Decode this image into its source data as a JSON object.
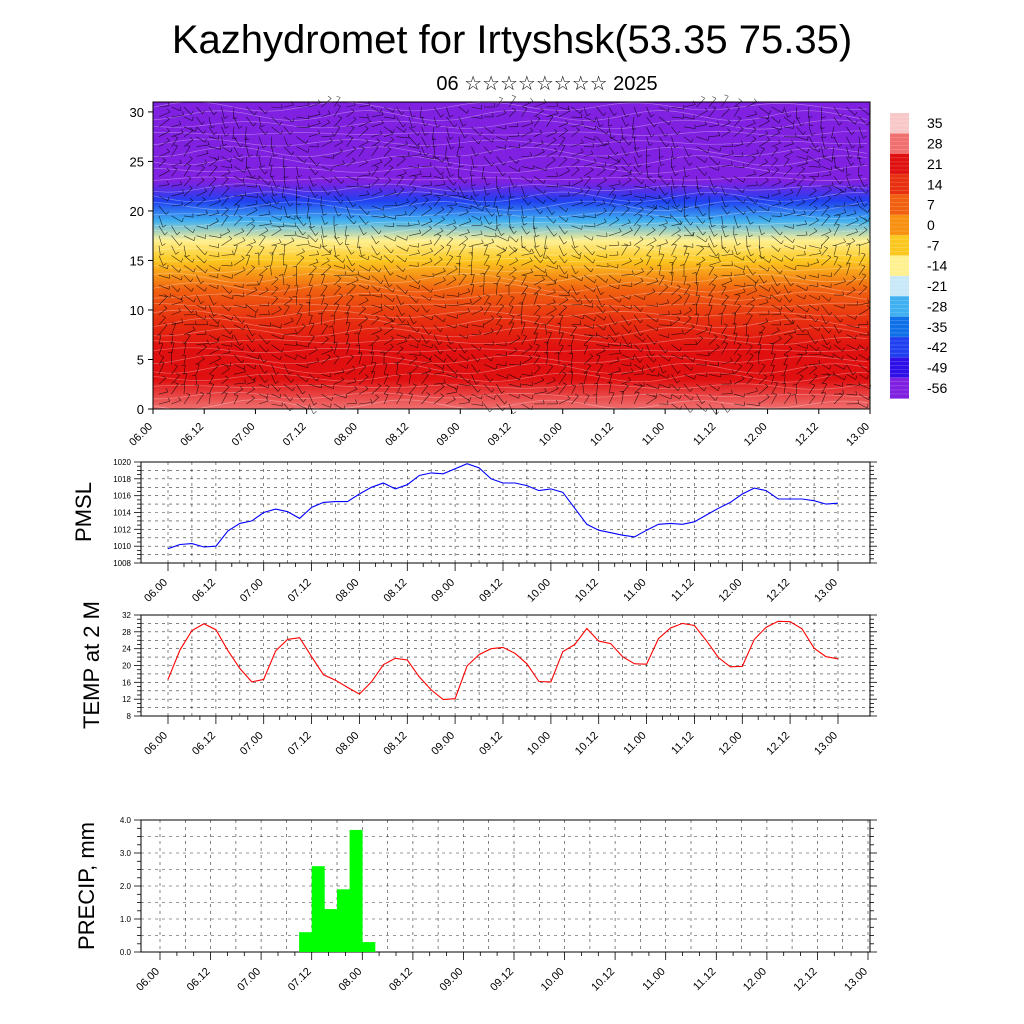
{
  "header": {
    "title": "Kazhydromet for Irtyshsk(53.35 75.35)",
    "subtitle": "06 ☆☆☆☆☆☆☆☆ 2025"
  },
  "time_ticks": [
    "06.00",
    "06.12",
    "07.00",
    "07.12",
    "08.00",
    "08.12",
    "09.00",
    "09.12",
    "10.00",
    "10.12",
    "11.00",
    "11.12",
    "12.00",
    "12.12",
    "13.00"
  ],
  "chart_data": [
    {
      "type": "heatmap",
      "name": "cross-section",
      "x_ticks": [
        "06.00",
        "06.12",
        "07.00",
        "07.12",
        "08.00",
        "08.12",
        "09.00",
        "09.12",
        "10.00",
        "10.12",
        "11.00",
        "11.12",
        "12.00",
        "12.12",
        "13.00"
      ],
      "y_ticks": [
        0,
        5,
        10,
        15,
        20,
        25,
        30
      ],
      "ylim": [
        0,
        31
      ],
      "colorbar": {
        "labels": [
          "35",
          "28",
          "21",
          "14",
          "7",
          "0",
          "-7",
          "-14",
          "-21",
          "-28",
          "-35",
          "-42",
          "-49",
          "-56"
        ],
        "colors": [
          "#f8c8c8",
          "#f07070",
          "#e01010",
          "#e83010",
          "#f06010",
          "#f89010",
          "#fcc820",
          "#fff090",
          "#c8e8f8",
          "#40b0f0",
          "#1070e8",
          "#2040f0",
          "#3010e8",
          "#8020e0"
        ]
      },
      "temperature_profile": [
        [
          0,
          27
        ],
        [
          3,
          24
        ],
        [
          6,
          20
        ],
        [
          9,
          14
        ],
        [
          12,
          6
        ],
        [
          15,
          -4
        ],
        [
          17,
          -13
        ],
        [
          19,
          -30
        ],
        [
          21,
          -45
        ],
        [
          23,
          -55
        ],
        [
          25,
          -58
        ],
        [
          28,
          -56
        ],
        [
          31,
          -55
        ]
      ]
    },
    {
      "type": "line",
      "name": "pmsl",
      "ylabel": "PMSL",
      "ylim": [
        1008,
        1020
      ],
      "y_ticks": [
        1008,
        1010,
        1012,
        1014,
        1016,
        1018,
        1020
      ],
      "color": "#0000ff",
      "step_hours": 3,
      "values": [
        1009.7,
        1010.2,
        1010.3,
        1009.9,
        1010.0,
        1011.8,
        1012.7,
        1013.0,
        1014.0,
        1014.4,
        1014.1,
        1013.3,
        1014.6,
        1015.2,
        1015.3,
        1015.3,
        1016.2,
        1017.0,
        1017.5,
        1016.8,
        1017.3,
        1018.4,
        1018.7,
        1018.6,
        1019.2,
        1019.8,
        1019.3,
        1018.0,
        1017.5,
        1017.5,
        1017.2,
        1016.6,
        1016.8,
        1016.4,
        1014.5,
        1012.6,
        1011.9,
        1011.6,
        1011.3,
        1011.1,
        1011.9,
        1012.6,
        1012.7,
        1012.6,
        1012.9,
        1013.7,
        1014.5,
        1015.2,
        1016.2,
        1016.9,
        1016.6,
        1015.6,
        1015.6,
        1015.6,
        1015.4,
        1015.0,
        1015.1
      ]
    },
    {
      "type": "line",
      "name": "temp",
      "ylabel": "TEMP at 2 M",
      "ylim": [
        8,
        32
      ],
      "y_ticks": [
        8,
        12,
        16,
        20,
        24,
        28,
        32
      ],
      "color": "#ff0000",
      "step_hours": 3,
      "values": [
        16.7,
        23.7,
        28.3,
        29.9,
        28.5,
        23.6,
        19.3,
        16.1,
        16.7,
        23.5,
        26.2,
        26.6,
        22.1,
        17.8,
        16.5,
        14.8,
        13.2,
        16.1,
        20.2,
        21.7,
        21.3,
        17.3,
        14.2,
        11.9,
        12.1,
        19.9,
        22.6,
        24.0,
        24.3,
        22.9,
        20.4,
        16.2,
        16.1,
        23.3,
        25.0,
        28.8,
        25.8,
        25.2,
        22.1,
        20.4,
        20.3,
        26.4,
        28.9,
        30.0,
        29.5,
        25.9,
        21.9,
        19.7,
        19.8,
        26.2,
        29.1,
        30.5,
        30.4,
        28.7,
        24.1,
        22.1,
        21.6
      ]
    },
    {
      "type": "bar",
      "name": "precip",
      "ylabel": "PRECIP, mm",
      "ylim": [
        0,
        4
      ],
      "y_ticks": [
        "0.0",
        "1.0",
        "2.0",
        "3.0",
        "4.0"
      ],
      "color": "#00ff00",
      "step_hours": 3,
      "values": [
        0,
        0,
        0,
        0,
        0,
        0,
        0,
        0,
        0,
        0,
        0,
        0.6,
        2.6,
        1.3,
        1.9,
        3.7,
        0.3,
        0,
        0,
        0,
        0,
        0,
        0,
        0,
        0,
        0,
        0,
        0,
        0,
        0,
        0,
        0,
        0,
        0,
        0,
        0,
        0,
        0,
        0,
        0,
        0,
        0,
        0,
        0,
        0,
        0,
        0,
        0,
        0,
        0,
        0,
        0,
        0,
        0,
        0,
        0
      ]
    }
  ]
}
